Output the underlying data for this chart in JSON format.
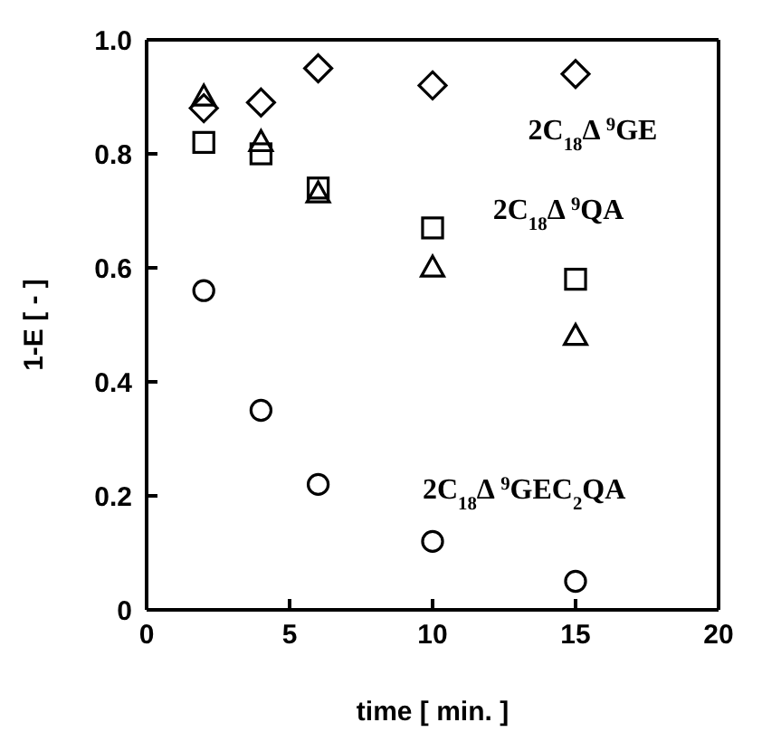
{
  "chart_data": {
    "type": "scatter",
    "xlabel": "time [ min. ]",
    "ylabel": "1-E [ - ]",
    "x": [
      2,
      4,
      6,
      10,
      15
    ],
    "series": [
      {
        "name": "2C$_{18}$Δ $^{9}$GE",
        "color": "#000000",
        "marker": "diamond",
        "values": [
          0.88,
          0.89,
          0.95,
          0.92,
          0.94
        ]
      },
      {
        "name": "2C$_{18}$Δ $^{9}$QA",
        "color": "#000000",
        "marker": "square",
        "values": [
          0.82,
          0.8,
          0.74,
          0.67,
          0.58
        ]
      },
      {
        "color": "#000000",
        "marker": "triangle",
        "values": [
          0.9,
          0.82,
          0.73,
          0.6,
          0.48
        ]
      },
      {
        "name": "2C$_{18}$Δ $^{9}$GEC$_{2}$QA",
        "color": "#000000",
        "marker": "circle",
        "values": [
          0.56,
          0.35,
          0.22,
          0.12,
          0.05
        ]
      }
    ],
    "xlim": [
      0,
      20
    ],
    "xticks": [
      0,
      5,
      10,
      15,
      20
    ],
    "ylim": [
      0,
      1
    ],
    "yticks": [
      0,
      0.2,
      0.4,
      0.6,
      0.8,
      {
        "value": 1,
        "label": "1.0"
      }
    ],
    "grid": false
  }
}
